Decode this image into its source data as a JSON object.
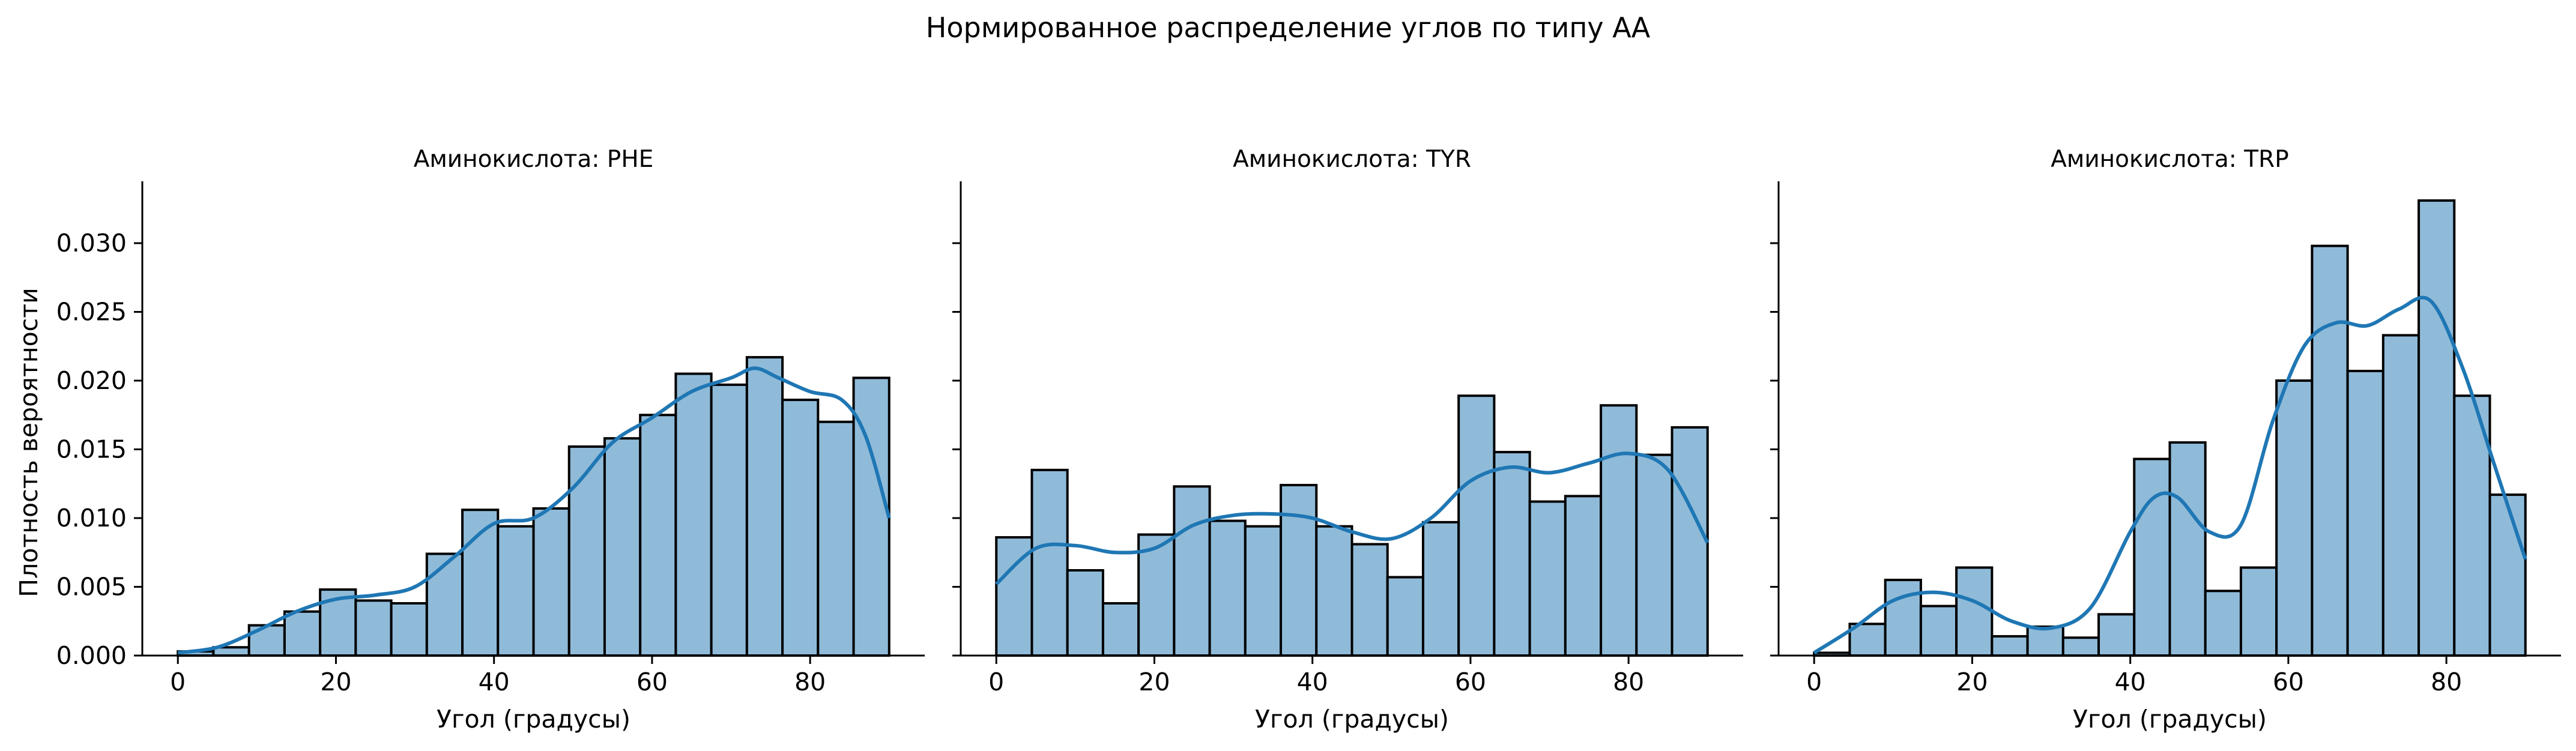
{
  "figure": {
    "suptitle": "Нормированное распределение углов по типу АА",
    "ylabel": "Плотность вероятности",
    "bar_color": "#8fbbd9",
    "bar_edge": "#000000",
    "kde_color": "#1f77b4"
  },
  "chart_data": [
    {
      "type": "bar",
      "title": "Аминокислота: PHE",
      "xlabel": "Угол (градусы)",
      "ylabel": "Плотность вероятности",
      "xlim": [
        -4.5,
        94.5
      ],
      "ylim": [
        0,
        0.0345
      ],
      "xticks": [
        0,
        20,
        40,
        60,
        80
      ],
      "yticks": [
        0.0,
        0.005,
        0.01,
        0.015,
        0.02,
        0.025,
        0.03
      ],
      "ytick_labels": [
        "0.000",
        "0.005",
        "0.010",
        "0.015",
        "0.020",
        "0.025",
        "0.030"
      ],
      "bin_edges": [
        0,
        4.5,
        9,
        13.5,
        18,
        22.5,
        27,
        31.5,
        36,
        40.5,
        45,
        49.5,
        54,
        58.5,
        63,
        67.5,
        72,
        76.5,
        81,
        85.5,
        90
      ],
      "values": [
        0.0003,
        0.0006,
        0.0022,
        0.0032,
        0.0048,
        0.004,
        0.0038,
        0.0074,
        0.0106,
        0.0094,
        0.0107,
        0.0152,
        0.0158,
        0.0175,
        0.0205,
        0.0197,
        0.0217,
        0.0186,
        0.017,
        0.0202
      ],
      "kde": {
        "x": [
          0,
          5,
          10,
          15,
          20,
          25,
          30,
          35,
          40,
          45,
          50,
          55,
          60,
          65,
          70,
          73,
          76,
          80,
          84,
          87,
          90
        ],
        "y": [
          0.0002,
          0.0006,
          0.0018,
          0.0032,
          0.0041,
          0.0044,
          0.005,
          0.0072,
          0.0096,
          0.01,
          0.0122,
          0.0155,
          0.0173,
          0.0192,
          0.0202,
          0.0209,
          0.0202,
          0.0192,
          0.0186,
          0.016,
          0.01
        ]
      }
    },
    {
      "type": "bar",
      "title": "Аминокислота: TYR",
      "xlabel": "Угол (градусы)",
      "xlim": [
        -4.5,
        94.5
      ],
      "ylim": [
        0,
        0.0345
      ],
      "xticks": [
        0,
        20,
        40,
        60,
        80
      ],
      "bin_edges": [
        0,
        4.5,
        9,
        13.5,
        18,
        22.5,
        27,
        31.5,
        36,
        40.5,
        45,
        49.5,
        54,
        58.5,
        63,
        67.5,
        72,
        76.5,
        81,
        85.5,
        90
      ],
      "values": [
        0.0086,
        0.0135,
        0.0062,
        0.0038,
        0.0088,
        0.0123,
        0.0098,
        0.0094,
        0.0124,
        0.0094,
        0.0081,
        0.0057,
        0.0097,
        0.0189,
        0.0148,
        0.0112,
        0.0116,
        0.0182,
        0.0146,
        0.0166
      ],
      "kde": {
        "x": [
          0,
          5,
          10,
          15,
          20,
          25,
          30,
          35,
          40,
          45,
          50,
          55,
          60,
          65,
          70,
          75,
          80,
          85,
          90
        ],
        "y": [
          0.0052,
          0.0078,
          0.008,
          0.0075,
          0.0078,
          0.0095,
          0.0102,
          0.0103,
          0.01,
          0.009,
          0.0085,
          0.01,
          0.0127,
          0.0137,
          0.0133,
          0.014,
          0.0147,
          0.0135,
          0.0082
        ]
      }
    },
    {
      "type": "bar",
      "title": "Аминокислота: TRP",
      "xlabel": "Угол (градусы)",
      "xlim": [
        -4.5,
        94.5
      ],
      "ylim": [
        0,
        0.0345
      ],
      "xticks": [
        0,
        20,
        40,
        60,
        80
      ],
      "bin_edges": [
        0,
        4.5,
        9,
        13.5,
        18,
        22.5,
        27,
        31.5,
        36,
        40.5,
        45,
        49.5,
        54,
        58.5,
        63,
        67.5,
        72,
        76.5,
        81,
        85.5,
        90
      ],
      "values": [
        0.0002,
        0.0023,
        0.0055,
        0.0036,
        0.0064,
        0.0014,
        0.0021,
        0.0013,
        0.003,
        0.0143,
        0.0155,
        0.0047,
        0.0064,
        0.02,
        0.0298,
        0.0207,
        0.0233,
        0.0331,
        0.0189,
        0.0117
      ],
      "kde": {
        "x": [
          0,
          5,
          10,
          15,
          20,
          25,
          30,
          35,
          40,
          43,
          46,
          50,
          54,
          58,
          62,
          66,
          70,
          74,
          78,
          82,
          86,
          90
        ],
        "y": [
          0.0002,
          0.002,
          0.004,
          0.0046,
          0.004,
          0.0025,
          0.002,
          0.0035,
          0.009,
          0.0115,
          0.0115,
          0.009,
          0.0095,
          0.017,
          0.0225,
          0.0242,
          0.024,
          0.0252,
          0.0258,
          0.021,
          0.014,
          0.007
        ]
      }
    }
  ]
}
